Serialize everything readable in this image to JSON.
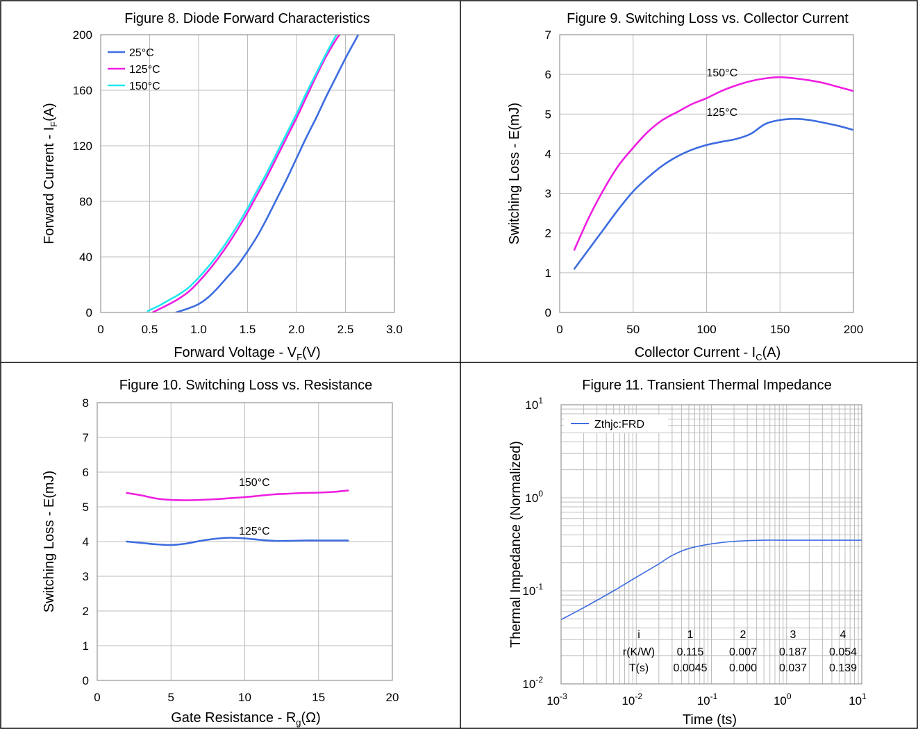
{
  "chart_data": [
    {
      "type": "line",
      "title": "Figure 8. Diode Forward Characteristics",
      "xlabel": "Forward Voltage - V",
      "xlabel_sub": "F",
      "xlabel_suffix": "(V)",
      "ylabel": "Forward Current - I",
      "ylabel_sub": "F",
      "ylabel_suffix": "(A)",
      "xlim": [
        0,
        3.0
      ],
      "ylim": [
        0,
        200
      ],
      "xticks": [
        "0",
        "0.5",
        "1.0",
        "1.5",
        "2.0",
        "2.5",
        "3.0"
      ],
      "yticks": [
        "0",
        "40",
        "80",
        "120",
        "160",
        "200"
      ],
      "grid": true,
      "legend": "top-left",
      "series": [
        {
          "name": "25°C",
          "color": "#3c6ce0",
          "points": [
            [
              0.77,
              0
            ],
            [
              0.9,
              3
            ],
            [
              1.0,
              6
            ],
            [
              1.1,
              11
            ],
            [
              1.2,
              18
            ],
            [
              1.3,
              26
            ],
            [
              1.4,
              34
            ],
            [
              1.5,
              44
            ],
            [
              1.6,
              55
            ],
            [
              1.7,
              68
            ],
            [
              1.8,
              82
            ],
            [
              1.9,
              96
            ],
            [
              2.0,
              111
            ],
            [
              2.1,
              126
            ],
            [
              2.2,
              140
            ],
            [
              2.3,
              155
            ],
            [
              2.4,
              169
            ],
            [
              2.5,
              183
            ],
            [
              2.6,
              196
            ],
            [
              2.63,
              200
            ]
          ]
        },
        {
          "name": "125°C",
          "color": "#ef1ee1",
          "points": [
            [
              0.53,
              0
            ],
            [
              0.7,
              6
            ],
            [
              0.8,
              10
            ],
            [
              0.9,
              15
            ],
            [
              1.0,
              22
            ],
            [
              1.1,
              30
            ],
            [
              1.2,
              39
            ],
            [
              1.3,
              49
            ],
            [
              1.4,
              60
            ],
            [
              1.5,
              72
            ],
            [
              1.6,
              85
            ],
            [
              1.7,
              98
            ],
            [
              1.8,
              112
            ],
            [
              1.9,
              126
            ],
            [
              2.0,
              140
            ],
            [
              2.1,
              155
            ],
            [
              2.2,
              170
            ],
            [
              2.3,
              184
            ],
            [
              2.4,
              196
            ],
            [
              2.44,
              200
            ]
          ]
        },
        {
          "name": "150°C",
          "color": "#22e8f0",
          "points": [
            [
              0.48,
              1
            ],
            [
              0.6,
              5
            ],
            [
              0.7,
              9
            ],
            [
              0.8,
              13
            ],
            [
              0.9,
              18
            ],
            [
              1.0,
              25
            ],
            [
              1.1,
              33
            ],
            [
              1.2,
              42
            ],
            [
              1.3,
              52
            ],
            [
              1.4,
              63
            ],
            [
              1.5,
              75
            ],
            [
              1.6,
              88
            ],
            [
              1.7,
              101
            ],
            [
              1.8,
              115
            ],
            [
              1.9,
              129
            ],
            [
              2.0,
              143
            ],
            [
              2.1,
              158
            ],
            [
              2.2,
              172
            ],
            [
              2.3,
              186
            ],
            [
              2.4,
              199
            ],
            [
              2.41,
              200
            ]
          ]
        }
      ]
    },
    {
      "type": "line",
      "title": "Figure 9. Switching Loss vs. Collector Current",
      "xlabel": "Collector Current - I",
      "xlabel_sub": "C",
      "xlabel_suffix": "(A)",
      "ylabel": "Switching Loss - E(mJ)",
      "xlim": [
        0,
        200
      ],
      "ylim": [
        0,
        7
      ],
      "xticks": [
        "0",
        "50",
        "100",
        "150",
        "200"
      ],
      "yticks": [
        "0",
        "1",
        "2",
        "3",
        "4",
        "5",
        "6",
        "7"
      ],
      "grid": true,
      "series": [
        {
          "label": "150°C",
          "color": "#ef1ee1",
          "points": [
            [
              10,
              1.58
            ],
            [
              20,
              2.4
            ],
            [
              30,
              3.1
            ],
            [
              40,
              3.7
            ],
            [
              50,
              4.15
            ],
            [
              60,
              4.55
            ],
            [
              70,
              4.85
            ],
            [
              80,
              5.05
            ],
            [
              90,
              5.25
            ],
            [
              100,
              5.4
            ],
            [
              110,
              5.58
            ],
            [
              120,
              5.72
            ],
            [
              130,
              5.83
            ],
            [
              140,
              5.9
            ],
            [
              150,
              5.93
            ],
            [
              160,
              5.9
            ],
            [
              170,
              5.85
            ],
            [
              180,
              5.78
            ],
            [
              190,
              5.68
            ],
            [
              200,
              5.58
            ]
          ]
        },
        {
          "label": "125°C",
          "color": "#3c6ce0",
          "points": [
            [
              10,
              1.1
            ],
            [
              20,
              1.6
            ],
            [
              30,
              2.1
            ],
            [
              40,
              2.6
            ],
            [
              50,
              3.05
            ],
            [
              60,
              3.4
            ],
            [
              70,
              3.7
            ],
            [
              80,
              3.93
            ],
            [
              90,
              4.1
            ],
            [
              100,
              4.22
            ],
            [
              110,
              4.3
            ],
            [
              120,
              4.37
            ],
            [
              130,
              4.5
            ],
            [
              140,
              4.75
            ],
            [
              150,
              4.85
            ],
            [
              160,
              4.88
            ],
            [
              170,
              4.85
            ],
            [
              180,
              4.78
            ],
            [
              190,
              4.7
            ],
            [
              200,
              4.6
            ]
          ]
        }
      ],
      "annotations": [
        {
          "text": "150°C",
          "x": 100,
          "y": 5.95
        },
        {
          "text": "125°C",
          "x": 100,
          "y": 4.95
        }
      ]
    },
    {
      "type": "line",
      "title": "Figure 10. Switching Loss vs. Resistance",
      "xlabel": "Gate Resistance - R",
      "xlabel_sub": "g",
      "xlabel_suffix": "(Ω)",
      "ylabel": "Switching Loss - E(mJ)",
      "xlim": [
        0,
        20
      ],
      "ylim": [
        0,
        8
      ],
      "xticks": [
        "0",
        "5",
        "10",
        "15",
        "20"
      ],
      "yticks": [
        "0",
        "1",
        "2",
        "3",
        "4",
        "5",
        "6",
        "7",
        "8"
      ],
      "grid": true,
      "series": [
        {
          "label": "150°C",
          "color": "#ef1ee1",
          "points": [
            [
              2,
              5.4
            ],
            [
              3,
              5.33
            ],
            [
              4,
              5.24
            ],
            [
              5,
              5.2
            ],
            [
              6,
              5.19
            ],
            [
              7,
              5.2
            ],
            [
              8,
              5.22
            ],
            [
              9,
              5.25
            ],
            [
              10,
              5.28
            ],
            [
              11,
              5.32
            ],
            [
              12,
              5.36
            ],
            [
              13,
              5.38
            ],
            [
              14,
              5.4
            ],
            [
              15,
              5.41
            ],
            [
              16,
              5.43
            ],
            [
              17,
              5.47
            ]
          ]
        },
        {
          "label": "125°C",
          "color": "#3c6ce0",
          "points": [
            [
              2,
              4.0
            ],
            [
              3,
              3.96
            ],
            [
              4,
              3.92
            ],
            [
              5,
              3.9
            ],
            [
              6,
              3.94
            ],
            [
              7,
              4.02
            ],
            [
              8,
              4.08
            ],
            [
              9,
              4.11
            ],
            [
              10,
              4.09
            ],
            [
              11,
              4.05
            ],
            [
              12,
              4.02
            ],
            [
              13,
              4.02
            ],
            [
              14,
              4.03
            ],
            [
              15,
              4.03
            ],
            [
              16,
              4.03
            ],
            [
              17,
              4.03
            ]
          ]
        }
      ],
      "annotations": [
        {
          "text": "150°C",
          "x": 9.6,
          "y": 5.6
        },
        {
          "text": "125°C",
          "x": 9.6,
          "y": 4.2
        }
      ]
    },
    {
      "type": "line",
      "title": "Figure 11. Transient Thermal Impedance",
      "xlabel": "Time (ts)",
      "ylabel": "Thermal Impedance (Normalized)",
      "xscale": "log",
      "yscale": "log",
      "xlim": [
        0.001,
        10
      ],
      "ylim": [
        0.01,
        10
      ],
      "xtick_exponents": [
        "-3",
        "-2",
        "-1",
        "0",
        "1"
      ],
      "ytick_exponents": [
        "-2",
        "-1",
        "0",
        "1"
      ],
      "tick_base": "10",
      "grid": true,
      "legend": "top-left",
      "series": [
        {
          "name": "Zthjc:FRD",
          "color": "#3c6ce0",
          "points": [
            [
              0.001,
              0.049
            ],
            [
              0.002,
              0.066
            ],
            [
              0.005,
              0.1
            ],
            [
              0.01,
              0.14
            ],
            [
              0.02,
              0.195
            ],
            [
              0.03,
              0.24
            ],
            [
              0.05,
              0.285
            ],
            [
              0.1,
              0.32
            ],
            [
              0.2,
              0.34
            ],
            [
              0.5,
              0.35
            ],
            [
              1,
              0.35
            ],
            [
              2,
              0.35
            ],
            [
              5,
              0.35
            ],
            [
              10,
              0.35
            ]
          ]
        }
      ],
      "table": {
        "header": [
          "i",
          "1",
          "2",
          "3",
          "4"
        ],
        "rows": [
          [
            "r(K/W)",
            "0.115",
            "0.007",
            "0.187",
            "0.054"
          ],
          [
            "T(s)",
            "0.0045",
            "0.000",
            "0.037",
            "0.139"
          ]
        ]
      }
    }
  ]
}
